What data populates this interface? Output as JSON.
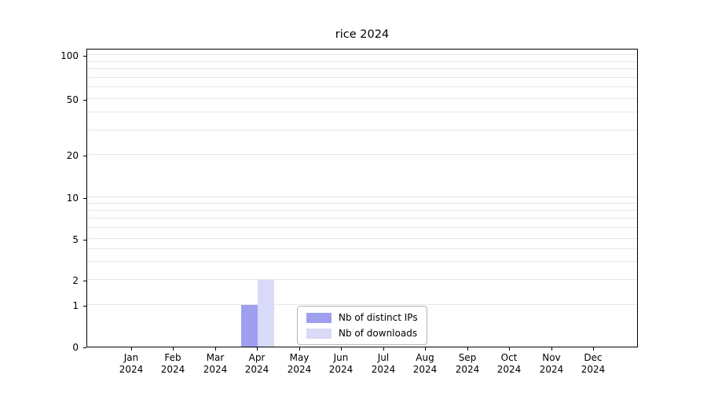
{
  "chart_data": {
    "type": "bar",
    "title": "rice 2024",
    "xlabel": "",
    "ylabel": "",
    "x_months": [
      "Jan",
      "Feb",
      "Mar",
      "Apr",
      "May",
      "Jun",
      "Jul",
      "Aug",
      "Sep",
      "Oct",
      "Nov",
      "Dec"
    ],
    "x_year": "2024",
    "yscale": "symlog-like",
    "yticks": [
      0,
      1,
      2,
      5,
      10,
      20,
      50,
      100
    ],
    "ylim": [
      0,
      112
    ],
    "grid": "horizontal light-gray minor and major lines",
    "grid_values": [
      1,
      2,
      3,
      4,
      5,
      6,
      7,
      8,
      9,
      10,
      20,
      30,
      40,
      50,
      60,
      70,
      80,
      90,
      100
    ],
    "series": [
      {
        "name": "Nb of distinct IPs",
        "color": "#9f9ff0",
        "values": [
          0,
          0,
          0,
          1,
          0,
          0,
          0,
          0,
          0,
          0,
          0,
          0
        ]
      },
      {
        "name": "Nb of downloads",
        "color": "#d9d9f8",
        "values": [
          0,
          0,
          0,
          2,
          0,
          0,
          0,
          0,
          0,
          0,
          0,
          0
        ]
      }
    ],
    "legend_position": "lower center"
  }
}
